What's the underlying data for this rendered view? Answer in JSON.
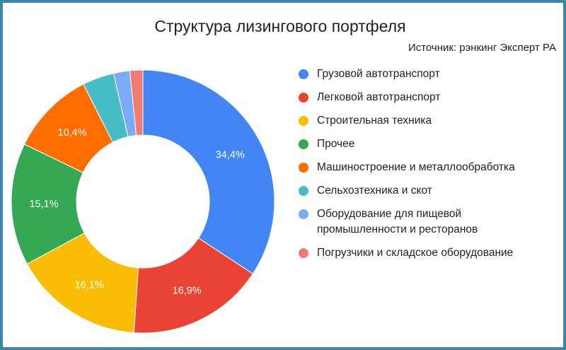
{
  "chart_data": {
    "type": "pie",
    "title": "Структура лизингового портфеля",
    "subtitle": "Источник: рэнкинг Эксперт РА",
    "legend_position": "right",
    "donut": true,
    "slices": [
      {
        "name": "Грузовой автотранспорт",
        "value": 34.4,
        "label": "34,4%",
        "color": "#4285f4"
      },
      {
        "name": "Легковой автотранспорт",
        "value": 16.9,
        "label": "16,9%",
        "color": "#ea4335"
      },
      {
        "name": "Строительная техника",
        "value": 16.1,
        "label": "16,1%",
        "color": "#fbbc04"
      },
      {
        "name": "Прочее",
        "value": 15.1,
        "label": "15,1%",
        "color": "#34a853"
      },
      {
        "name": "Машиностроение и металлообработка",
        "value": 10.4,
        "label": "10,4%",
        "color": "#ff6d01"
      },
      {
        "name": "Сельхозтехника и скот",
        "value": 3.9,
        "label": "",
        "color": "#46bdc6"
      },
      {
        "name": "Оборудование для пищевой\nпромышленности и ресторанов",
        "value": 2.0,
        "label": "",
        "color": "#7baaf7"
      },
      {
        "name": "Погрузчики и складское оборудование",
        "value": 1.6,
        "label": "",
        "color": "#f07b72"
      }
    ]
  }
}
